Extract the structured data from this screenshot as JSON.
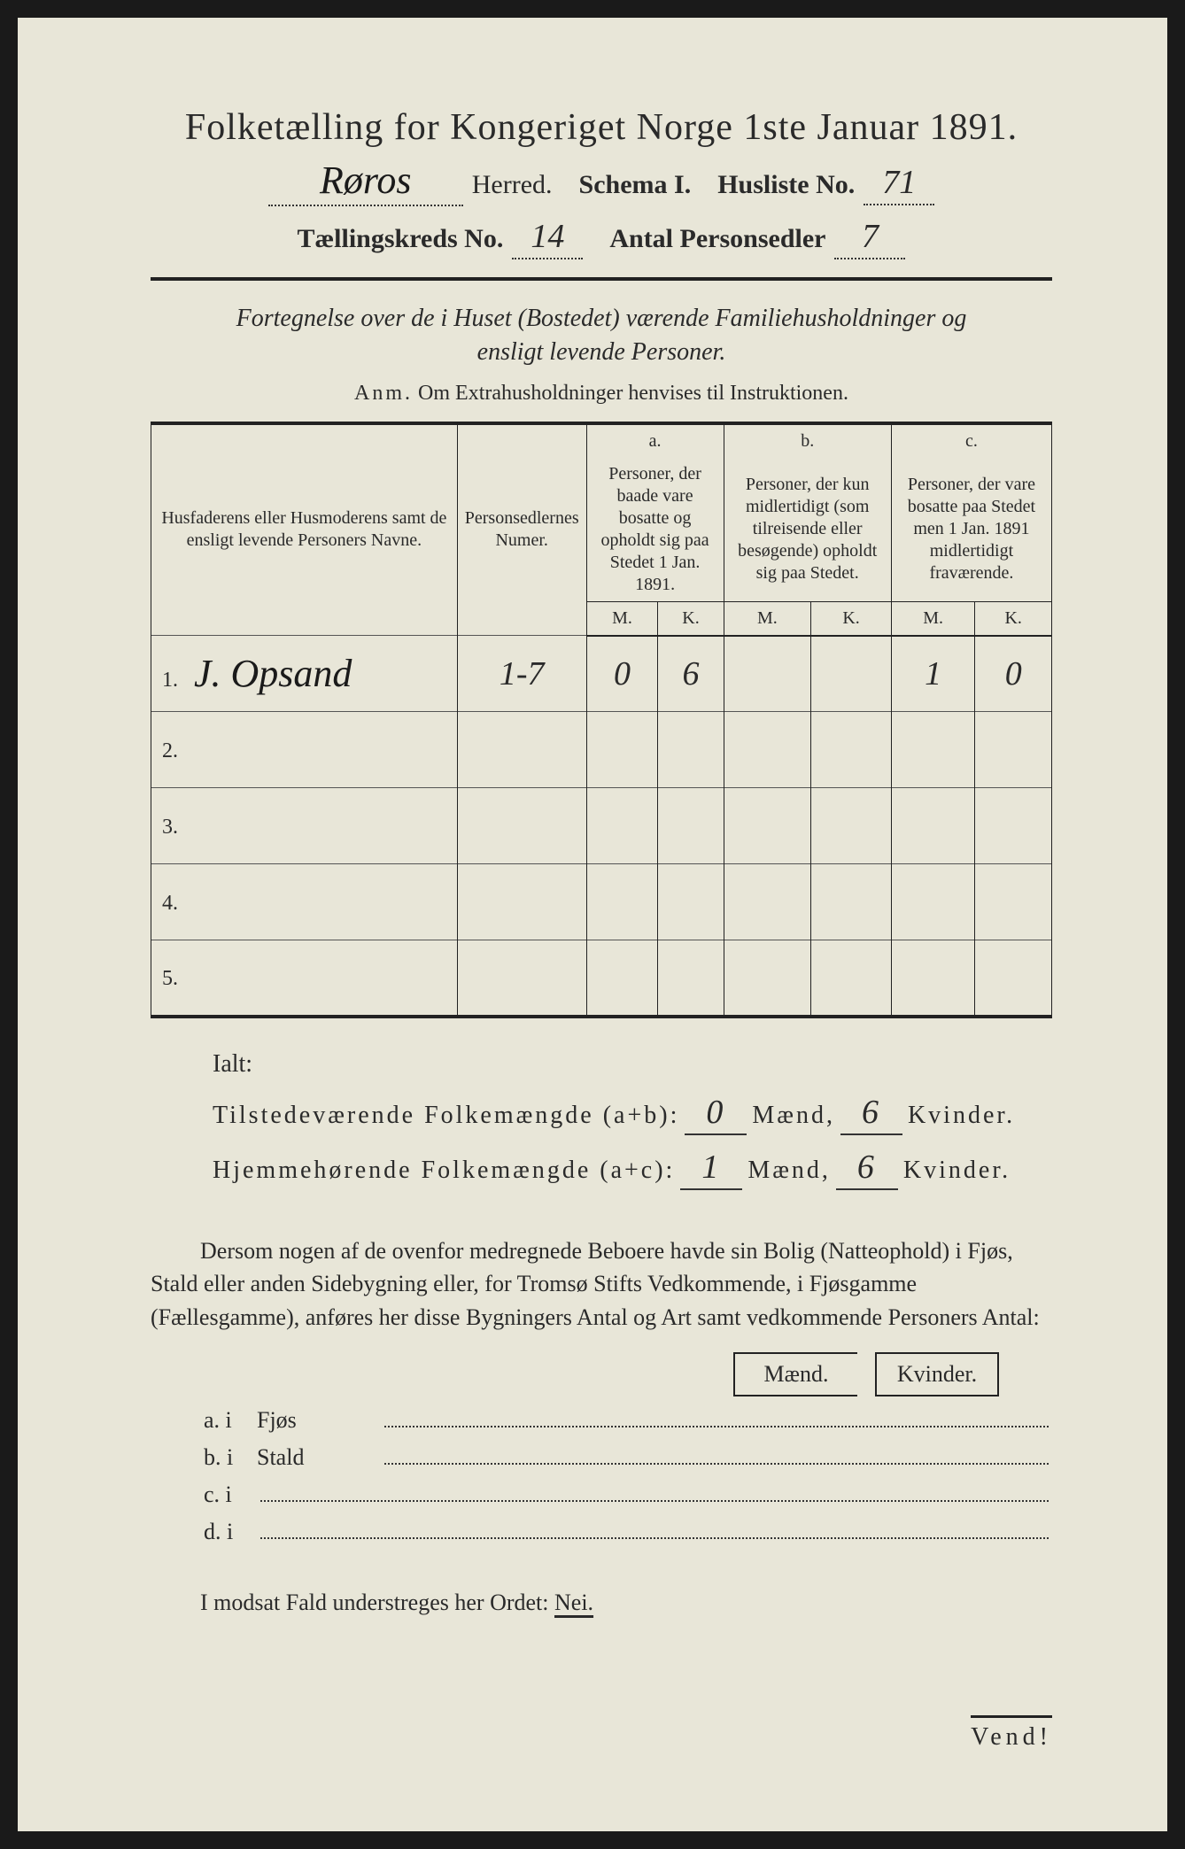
{
  "title": "Folketælling for Kongeriget Norge 1ste Januar 1891.",
  "header": {
    "herred_value": "Røros",
    "herred_label": "Herred.",
    "schema_label": "Schema I.",
    "husliste_label": "Husliste No.",
    "husliste_value": "71",
    "kreds_label": "Tællingskreds No.",
    "kreds_value": "14",
    "antal_label": "Antal Personsedler",
    "antal_value": "7"
  },
  "subtitle": "Fortegnelse over de i Huset (Bostedet) værende Familiehusholdninger og ensligt levende Personer.",
  "anm_label": "Anm.",
  "anm_text": "Om Extrahusholdninger henvises til Instruktionen.",
  "table": {
    "col1": "Husfaderens eller Husmoderens samt de ensligt levende Personers Navne.",
    "col2": "Personsedlernes Numer.",
    "col_a_label": "a.",
    "col_a": "Personer, der baade vare bosatte og opholdt sig paa Stedet 1 Jan. 1891.",
    "col_b_label": "b.",
    "col_b": "Personer, der kun midlertidigt (som tilreisende eller besøgende) opholdt sig paa Stedet.",
    "col_c_label": "c.",
    "col_c": "Personer, der vare bosatte paa Stedet men 1 Jan. 1891 midlertidigt fraværende.",
    "mk_m": "M.",
    "mk_k": "K.",
    "rows": [
      {
        "num": "1.",
        "name": "J. Opsand",
        "sedler": "1-7",
        "a_m": "0",
        "a_k": "6",
        "b_m": "",
        "b_k": "",
        "c_m": "1",
        "c_k": "0"
      },
      {
        "num": "2.",
        "name": "",
        "sedler": "",
        "a_m": "",
        "a_k": "",
        "b_m": "",
        "b_k": "",
        "c_m": "",
        "c_k": ""
      },
      {
        "num": "3.",
        "name": "",
        "sedler": "",
        "a_m": "",
        "a_k": "",
        "b_m": "",
        "b_k": "",
        "c_m": "",
        "c_k": ""
      },
      {
        "num": "4.",
        "name": "",
        "sedler": "",
        "a_m": "",
        "a_k": "",
        "b_m": "",
        "b_k": "",
        "c_m": "",
        "c_k": ""
      },
      {
        "num": "5.",
        "name": "",
        "sedler": "",
        "a_m": "",
        "a_k": "",
        "b_m": "",
        "b_k": "",
        "c_m": "",
        "c_k": ""
      }
    ]
  },
  "totals": {
    "ialt": "Ialt:",
    "line1_label": "Tilstedeværende Folkemængde (a+b):",
    "line1_m": "0",
    "line1_k": "6",
    "line2_label": "Hjemmehørende Folkemængde (a+c):",
    "line2_m": "1",
    "line2_k": "6",
    "maend": "Mænd,",
    "kvinder": "Kvinder."
  },
  "para": "Dersom nogen af de ovenfor medregnede Beboere havde sin Bolig (Natteophold) i Fjøs, Stald eller anden Sidebygning eller, for Tromsø Stifts Vedkommende, i Fjøsgamme (Fællesgamme), anføres her disse Bygningers Antal og Art samt vedkommende Personers Antal:",
  "mk": {
    "maend": "Mænd.",
    "kvinder": "Kvinder."
  },
  "sublist": {
    "a": {
      "lab": "a.  i",
      "word": "Fjøs"
    },
    "b": {
      "lab": "b.  i",
      "word": "Stald"
    },
    "c": {
      "lab": "c.  i",
      "word": ""
    },
    "d": {
      "lab": "d.  i",
      "word": ""
    }
  },
  "nei": {
    "pre": "I modsat Fald understreges her Ordet: ",
    "word": "Nei."
  },
  "vend": "Vend!"
}
